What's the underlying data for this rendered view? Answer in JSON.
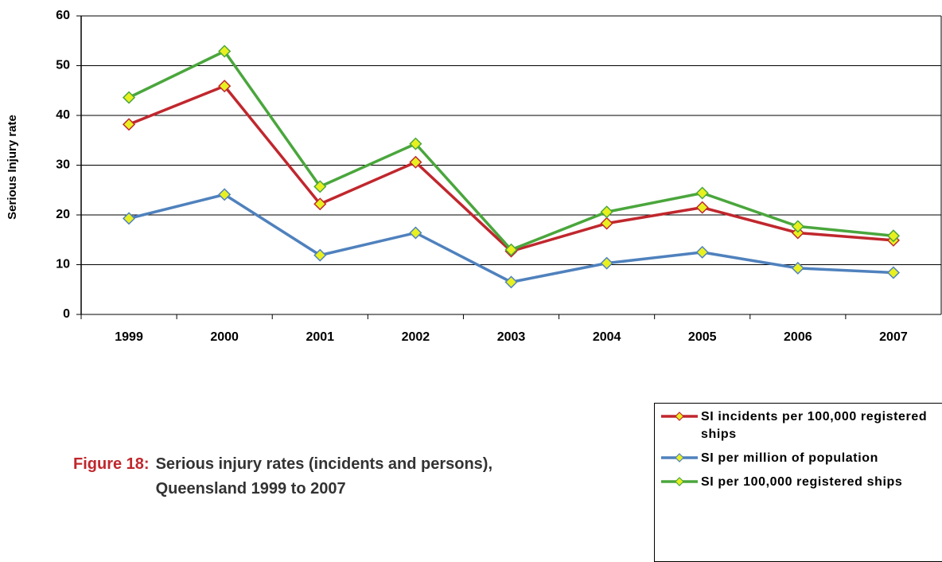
{
  "chart_data": {
    "type": "line",
    "figure_label": "Figure 18:",
    "title": "Serious injury rates (incidents and persons), Queensland 1999 to 2007",
    "y_label": "Serious Injury rate",
    "categories": [
      "1999",
      "2000",
      "2001",
      "2002",
      "2003",
      "2004",
      "2005",
      "2006",
      "2007"
    ],
    "series": [
      {
        "name": "SI incidents per 100,000 registered ships",
        "color": "#c0272d",
        "values": [
          38.2,
          45.9,
          22.2,
          30.6,
          12.7,
          18.3,
          21.5,
          16.4,
          14.9
        ]
      },
      {
        "name": "SI per million of population",
        "color": "#4f81bd",
        "values": [
          19.3,
          24.1,
          11.9,
          16.4,
          6.5,
          10.3,
          12.5,
          9.3,
          8.4
        ]
      },
      {
        "name": "SI per 100,000 registered ships",
        "color": "#4aa63c",
        "values": [
          43.6,
          52.9,
          25.7,
          34.3,
          13.0,
          20.6,
          24.4,
          17.7,
          15.8
        ]
      }
    ],
    "marker_fill": "#e8f020",
    "ylim": [
      0,
      60
    ],
    "yticks": [
      0,
      10,
      20,
      30,
      40,
      50,
      60
    ],
    "grid": true
  }
}
